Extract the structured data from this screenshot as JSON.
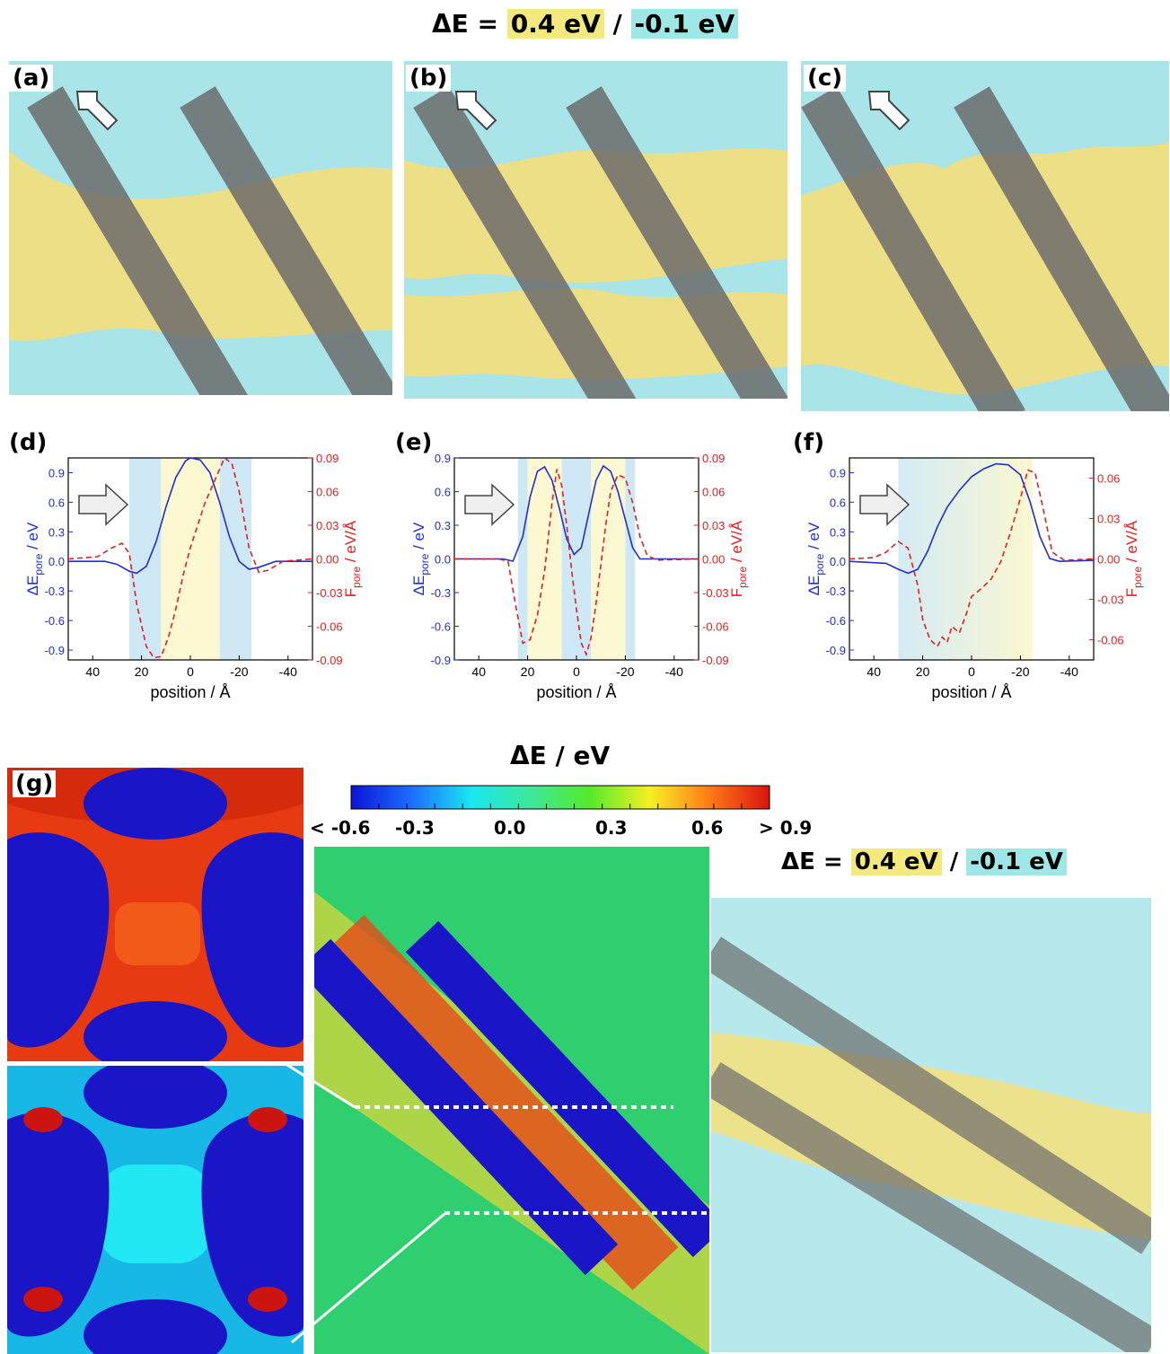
{
  "header": {
    "delta": "ΔE = ",
    "pos_value": "0.4 eV",
    "slash": " / ",
    "neg_value": "-0.1 eV",
    "pos_color": "#f3e97e",
    "neg_color": "#9fe6e6"
  },
  "panels": {
    "a": "(a)",
    "b": "(b)",
    "c": "(c)",
    "d": "(d)",
    "e": "(e)",
    "f": "(f)",
    "g": "(g)"
  },
  "plot_axes": {
    "xlabel": "position / Å",
    "ylabel_left": "ΔE",
    "ylabel_left_sub": "pore",
    "ylabel_left_unit": " / eV",
    "ylabel_right": "F",
    "ylabel_right_sub": "pore",
    "ylabel_right_unit": " / eV/Å",
    "left_color": "#1f2fd0",
    "right_color": "#e02020"
  },
  "chart_data": [
    {
      "type": "line",
      "panel": "(d)",
      "x_reversed": true,
      "xlim": [
        50,
        -50
      ],
      "x_ticks": [
        40,
        20,
        0,
        -20,
        -40
      ],
      "ylim_left": [
        -1.0,
        1.05
      ],
      "y_ticks_left": [
        0.9,
        0.6,
        0.3,
        0.0,
        -0.3,
        -0.6,
        -0.9
      ],
      "ylim_right": [
        -0.09,
        0.09
      ],
      "y_ticks_right": [
        0.09,
        0.06,
        0.03,
        0.0,
        -0.03,
        -0.06,
        -0.09
      ],
      "y_tick_labels_left": [
        "0.9",
        "0.6",
        "0.3",
        "0.0",
        "-0.3",
        "-0.6",
        "-0.9"
      ],
      "y_tick_labels_right": [
        "0.09",
        "0.06",
        "0.03",
        "0.00",
        "-0.03",
        "-0.06",
        "-0.09"
      ],
      "x_tick_labels": [
        "40",
        "20",
        "0",
        "-20",
        "-40"
      ],
      "bands": [
        {
          "from": 25,
          "to": 12,
          "color": "#cfe8f6"
        },
        {
          "from": 12,
          "to": -12,
          "color": "#fbf8d2"
        },
        {
          "from": -12,
          "to": -25,
          "color": "#cfe8f6"
        }
      ],
      "series": [
        {
          "axis": "left",
          "style": "solid",
          "x": [
            50,
            35,
            30,
            25,
            22,
            18,
            14,
            10,
            6,
            2,
            0,
            -4,
            -8,
            -12,
            -16,
            -20,
            -24,
            -28,
            -35,
            -50
          ],
          "y": [
            0.0,
            0.0,
            -0.03,
            -0.1,
            -0.12,
            -0.05,
            0.2,
            0.55,
            0.85,
            1.02,
            1.05,
            1.03,
            0.9,
            0.6,
            0.25,
            0.0,
            -0.08,
            -0.06,
            0.0,
            0.0
          ]
        },
        {
          "axis": "right",
          "style": "dashed",
          "x": [
            50,
            38,
            32,
            28,
            25,
            22,
            18,
            15,
            12,
            9,
            6,
            3,
            0,
            -3,
            -6,
            -9,
            -12,
            -14,
            -17,
            -20,
            -24,
            -28,
            -32,
            -38,
            -50
          ],
          "y": [
            0.0,
            0.002,
            0.01,
            0.014,
            0.005,
            -0.04,
            -0.078,
            -0.088,
            -0.087,
            -0.07,
            -0.045,
            -0.015,
            0.01,
            0.03,
            0.05,
            0.065,
            0.08,
            0.09,
            0.085,
            0.06,
            0.01,
            -0.012,
            -0.01,
            -0.002,
            0.0
          ]
        }
      ]
    },
    {
      "type": "line",
      "panel": "(e)",
      "x_reversed": true,
      "xlim": [
        50,
        -50
      ],
      "x_ticks": [
        40,
        20,
        0,
        -20,
        -40
      ],
      "ylim_left": [
        -0.9,
        0.9
      ],
      "y_ticks_left": [
        0.9,
        0.6,
        0.3,
        0.0,
        -0.3,
        -0.6,
        -0.9
      ],
      "ylim_right": [
        -0.09,
        0.09
      ],
      "y_ticks_right": [
        0.09,
        0.06,
        0.03,
        0.0,
        -0.03,
        -0.06,
        -0.09
      ],
      "y_tick_labels_left": [
        "0.9",
        "0.6",
        "0.3",
        "0.0",
        "-0.3",
        "-0.6",
        "-0.9"
      ],
      "y_tick_labels_right": [
        "0.09",
        "0.06",
        "0.03",
        "0.00",
        "-0.03",
        "-0.06",
        "-0.09"
      ],
      "x_tick_labels": [
        "40",
        "20",
        "0",
        "-20",
        "-40"
      ],
      "bands": [
        {
          "from": 24,
          "to": 20,
          "color": "#cfe8f6"
        },
        {
          "from": 20,
          "to": 6,
          "color": "#fbf8d2"
        },
        {
          "from": 6,
          "to": -6,
          "color": "#cfe8f6"
        },
        {
          "from": -6,
          "to": -20,
          "color": "#fbf8d2"
        },
        {
          "from": -20,
          "to": -24,
          "color": "#cfe8f6"
        }
      ],
      "series": [
        {
          "axis": "left",
          "style": "solid",
          "x": [
            50,
            30,
            26,
            22,
            19,
            16,
            13,
            10,
            7,
            4,
            1,
            -2,
            -5,
            -8,
            -11,
            -14,
            -17,
            -20,
            -23,
            -26,
            -30,
            -50
          ],
          "y": [
            0.0,
            0.0,
            -0.02,
            0.2,
            0.55,
            0.78,
            0.82,
            0.7,
            0.45,
            0.18,
            0.04,
            0.1,
            0.4,
            0.7,
            0.83,
            0.78,
            0.6,
            0.35,
            0.1,
            0.0,
            0.0,
            0.0
          ]
        },
        {
          "axis": "right",
          "style": "dashed",
          "x": [
            50,
            32,
            28,
            25,
            22,
            19,
            16,
            13,
            10,
            8,
            6,
            4,
            2,
            0,
            -2,
            -4,
            -6,
            -8,
            -10,
            -12,
            -14,
            -17,
            -20,
            -23,
            -26,
            -29,
            -33,
            -50
          ],
          "y": [
            0.0,
            0.0,
            -0.002,
            -0.04,
            -0.075,
            -0.072,
            -0.05,
            -0.01,
            0.05,
            0.08,
            0.065,
            0.03,
            -0.01,
            -0.045,
            -0.075,
            -0.085,
            -0.07,
            -0.04,
            -0.005,
            0.03,
            0.06,
            0.075,
            0.072,
            0.05,
            0.02,
            0.003,
            -0.001,
            0.0
          ]
        }
      ]
    },
    {
      "type": "line",
      "panel": "(f)",
      "x_reversed": true,
      "xlim": [
        50,
        -50
      ],
      "x_ticks": [
        40,
        20,
        0,
        -20,
        -40
      ],
      "ylim_left": [
        -1.0,
        1.05
      ],
      "y_ticks_left": [
        0.9,
        0.6,
        0.3,
        0.0,
        -0.3,
        -0.6,
        -0.9
      ],
      "ylim_right": [
        -0.075,
        0.075
      ],
      "y_ticks_right": [
        0.06,
        0.03,
        0.0,
        -0.03,
        -0.06
      ],
      "y_tick_labels_left": [
        "0.9",
        "0.6",
        "0.3",
        "0.0",
        "-0.3",
        "-0.6",
        "-0.9"
      ],
      "y_tick_labels_right": [
        "0.06",
        "0.03",
        "0.00",
        "-0.03",
        "-0.06"
      ],
      "x_tick_labels": [
        "40",
        "20",
        "0",
        "-20",
        "-40"
      ],
      "bands": [
        {
          "from": 30,
          "to": -25,
          "color": "gradient",
          "stops": [
            "#d4ebf5",
            "#fbf8d2"
          ]
        }
      ],
      "series": [
        {
          "axis": "left",
          "style": "solid",
          "x": [
            50,
            35,
            30,
            26,
            22,
            18,
            14,
            10,
            5,
            0,
            -5,
            -10,
            -15,
            -20,
            -24,
            -28,
            -32,
            -36,
            -50
          ],
          "y": [
            0.0,
            -0.02,
            -0.08,
            -0.12,
            -0.08,
            0.1,
            0.35,
            0.55,
            0.72,
            0.86,
            0.94,
            0.99,
            0.98,
            0.88,
            0.6,
            0.25,
            0.03,
            0.0,
            0.01
          ]
        },
        {
          "axis": "right",
          "style": "dashed",
          "x": [
            50,
            40,
            35,
            30,
            26,
            22,
            20,
            17,
            14,
            12,
            10,
            8,
            5,
            2,
            0,
            -4,
            -8,
            -12,
            -16,
            -20,
            -23,
            -26,
            -29,
            -33,
            -38,
            -50
          ],
          "y": [
            0.0,
            0.001,
            0.005,
            0.013,
            0.008,
            -0.02,
            -0.045,
            -0.06,
            -0.065,
            -0.058,
            -0.062,
            -0.05,
            -0.055,
            -0.04,
            -0.028,
            -0.022,
            -0.015,
            -0.002,
            0.02,
            0.045,
            0.066,
            0.064,
            0.04,
            0.005,
            -0.001,
            0.0
          ]
        }
      ]
    }
  ],
  "colorbar": {
    "title": "ΔE / eV",
    "tick_labels": [
      "< -0.6",
      "-0.3",
      "0.0",
      "0.3",
      "0.6",
      "> 0.9"
    ],
    "range": [
      -0.6,
      0.9
    ],
    "colors": [
      "#0a14d8",
      "#1e6cff",
      "#18e6f0",
      "#3ee89a",
      "#56ea2a",
      "#f4f024",
      "#ff7a16",
      "#d81410"
    ]
  }
}
